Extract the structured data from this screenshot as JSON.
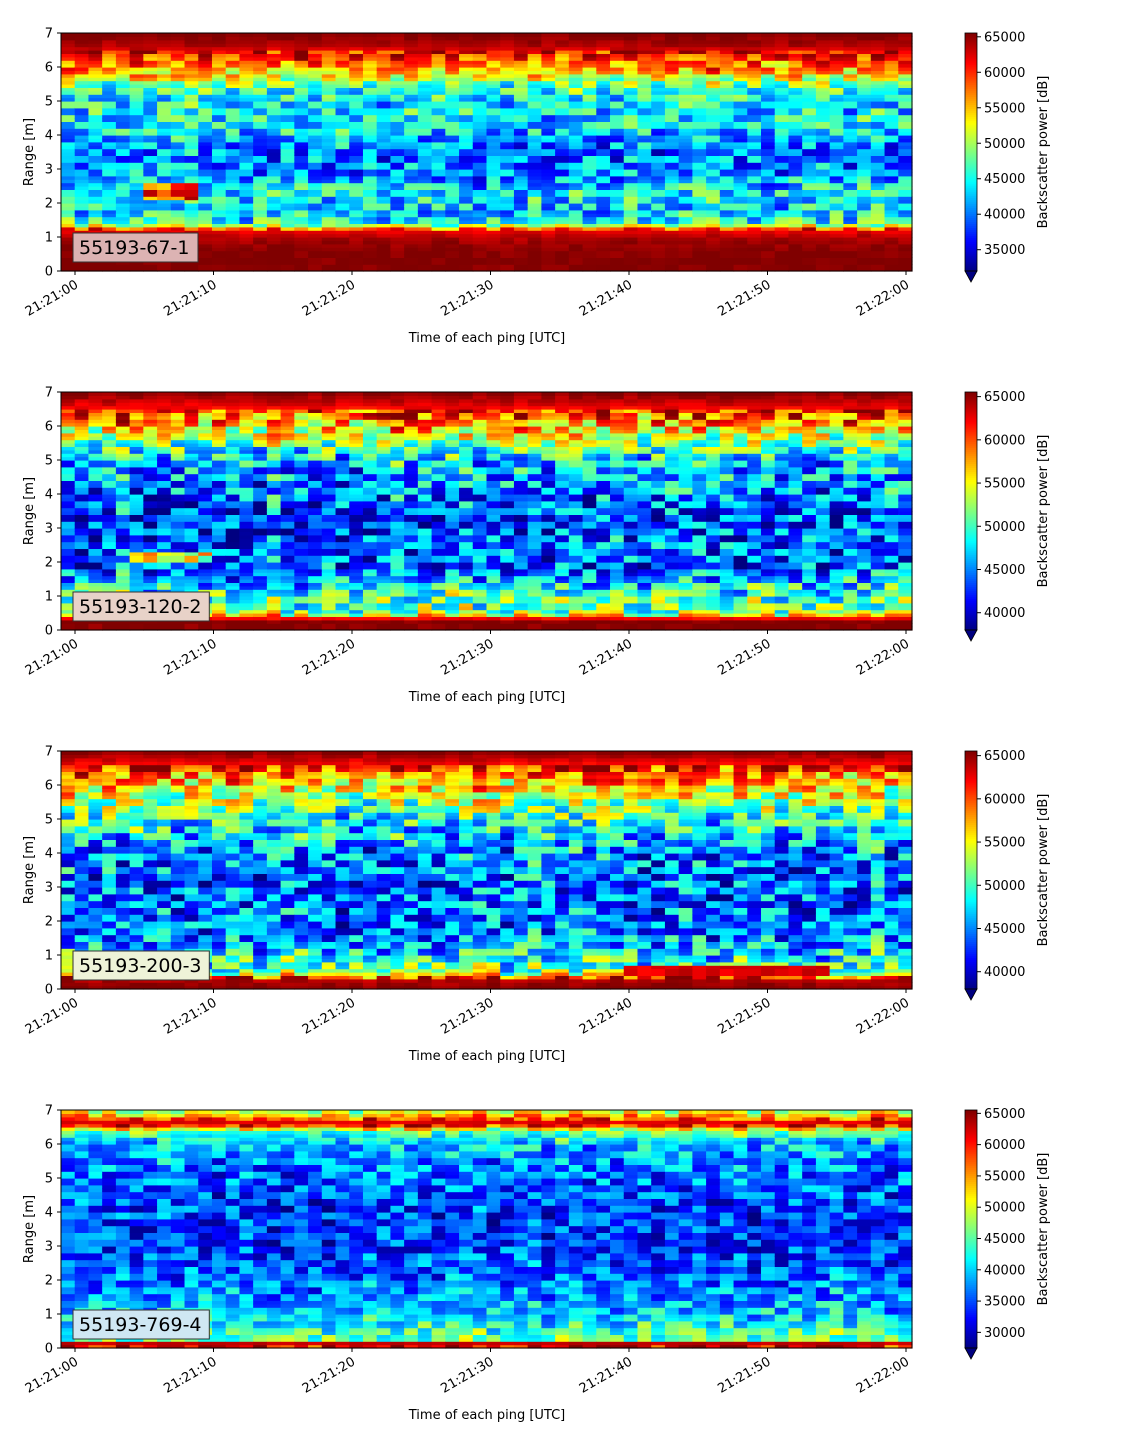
{
  "figure": {
    "colormap": "jet",
    "xlabel": "Time of each ping [UTC]",
    "ylabel": "Range [m]",
    "colorbar_label": "Backscatter power [dB]"
  },
  "chart_data": [
    {
      "type": "heatmap",
      "box_label": "55193-67-1",
      "box_color": "#dcb3b3",
      "xlabel": "Time of each ping [UTC]",
      "ylabel": "Range [m]",
      "x_ticks": [
        "21:21:00",
        "21:21:10",
        "21:21:20",
        "21:21:30",
        "21:21:40",
        "21:21:50",
        "21:22:00"
      ],
      "y_ticks": [
        0,
        1,
        2,
        3,
        4,
        5,
        6,
        7
      ],
      "xlim": [
        "21:21:00",
        "21:22:00"
      ],
      "ylim": [
        0,
        7
      ],
      "colorbar": {
        "label": "Backscatter power [dB]",
        "vmin": 32000,
        "vmax": 65535,
        "ticks": [
          35000,
          40000,
          45000,
          50000,
          55000,
          60000,
          65000
        ],
        "extend": "min"
      },
      "profile": [
        {
          "range": 0.0,
          "value": 65535
        },
        {
          "range": 0.25,
          "value": 65535
        },
        {
          "range": 0.6,
          "value": 65535
        },
        {
          "range": 1.0,
          "value": 64000
        },
        {
          "range": 1.2,
          "value": 62000
        },
        {
          "range": 1.4,
          "value": 46000
        },
        {
          "range": 1.8,
          "value": 43000
        },
        {
          "range": 2.3,
          "value": 45000
        },
        {
          "range": 2.8,
          "value": 41000
        },
        {
          "range": 3.5,
          "value": 40000
        },
        {
          "range": 4.2,
          "value": 44000
        },
        {
          "range": 5.0,
          "value": 44000
        },
        {
          "range": 5.5,
          "value": 48000
        },
        {
          "range": 5.9,
          "value": 56000
        },
        {
          "range": 6.3,
          "value": 60000
        },
        {
          "range": 6.65,
          "value": 64000
        },
        {
          "range": 7.0,
          "value": 65535
        }
      ],
      "features": [
        {
          "t_start": 5,
          "t_end": 9,
          "range_start": 2.15,
          "range_end": 2.55,
          "value": 58000
        }
      ]
    },
    {
      "type": "heatmap",
      "box_label": "55193-120-2",
      "box_color": "#e8d2c8",
      "xlabel": "Time of each ping [UTC]",
      "ylabel": "Range [m]",
      "x_ticks": [
        "21:21:00",
        "21:21:10",
        "21:21:20",
        "21:21:30",
        "21:21:40",
        "21:21:50",
        "21:22:00"
      ],
      "y_ticks": [
        0,
        1,
        2,
        3,
        4,
        5,
        6,
        7
      ],
      "xlim": [
        "21:21:00",
        "21:22:00"
      ],
      "ylim": [
        0,
        7
      ],
      "colorbar": {
        "label": "Backscatter power [dB]",
        "vmin": 38000,
        "vmax": 65535,
        "ticks": [
          40000,
          45000,
          50000,
          55000,
          60000,
          65000
        ],
        "extend": "min"
      },
      "profile": [
        {
          "range": 0.0,
          "value": 65535
        },
        {
          "range": 0.3,
          "value": 65535
        },
        {
          "range": 0.5,
          "value": 52000
        },
        {
          "range": 1.0,
          "value": 50000
        },
        {
          "range": 1.4,
          "value": 47000
        },
        {
          "range": 1.8,
          "value": 44000
        },
        {
          "range": 2.5,
          "value": 44000
        },
        {
          "range": 3.2,
          "value": 43000
        },
        {
          "range": 4.0,
          "value": 45000
        },
        {
          "range": 5.0,
          "value": 47000
        },
        {
          "range": 5.6,
          "value": 53000
        },
        {
          "range": 6.1,
          "value": 58000
        },
        {
          "range": 6.5,
          "value": 62000
        },
        {
          "range": 7.0,
          "value": 65535
        }
      ],
      "features": [
        {
          "t_start": 4,
          "t_end": 10,
          "range_start": 2.0,
          "range_end": 2.3,
          "value": 56000
        }
      ]
    },
    {
      "type": "heatmap",
      "box_label": "55193-200-3",
      "box_color": "#eef3d8",
      "xlabel": "Time of each ping [UTC]",
      "ylabel": "Range [m]",
      "x_ticks": [
        "21:21:00",
        "21:21:10",
        "21:21:20",
        "21:21:30",
        "21:21:40",
        "21:21:50",
        "21:22:00"
      ],
      "y_ticks": [
        0,
        1,
        2,
        3,
        4,
        5,
        6,
        7
      ],
      "xlim": [
        "21:21:00",
        "21:22:00"
      ],
      "ylim": [
        0,
        7
      ],
      "colorbar": {
        "label": "Backscatter power [dB]",
        "vmin": 38000,
        "vmax": 65535,
        "ticks": [
          40000,
          45000,
          50000,
          55000,
          60000,
          65000
        ],
        "extend": "min"
      },
      "profile": [
        {
          "range": 0.0,
          "value": 65535
        },
        {
          "range": 0.3,
          "value": 64000
        },
        {
          "range": 0.5,
          "value": 51000
        },
        {
          "range": 1.0,
          "value": 48000
        },
        {
          "range": 1.5,
          "value": 45000
        },
        {
          "range": 2.0,
          "value": 44000
        },
        {
          "range": 3.0,
          "value": 44000
        },
        {
          "range": 4.0,
          "value": 45000
        },
        {
          "range": 5.0,
          "value": 49000
        },
        {
          "range": 5.6,
          "value": 53000
        },
        {
          "range": 6.1,
          "value": 57000
        },
        {
          "range": 6.6,
          "value": 62000
        },
        {
          "range": 7.0,
          "value": 65535
        }
      ],
      "features": [
        {
          "t_start": 40,
          "t_end": 55,
          "range_start": 0.4,
          "range_end": 0.7,
          "value": 63000
        }
      ]
    },
    {
      "type": "heatmap",
      "box_label": "55193-769-4",
      "box_color": "#cfe7f3",
      "xlabel": "Time of each ping [UTC]",
      "ylabel": "Range [m]",
      "x_ticks": [
        "21:21:00",
        "21:21:10",
        "21:21:20",
        "21:21:30",
        "21:21:40",
        "21:21:50",
        "21:22:00"
      ],
      "y_ticks": [
        0,
        1,
        2,
        3,
        4,
        5,
        6,
        7
      ],
      "xlim": [
        "21:21:00",
        "21:22:00"
      ],
      "ylim": [
        0,
        7
      ],
      "colorbar": {
        "label": "Backscatter power [dB]",
        "vmin": 27500,
        "vmax": 65535,
        "ticks": [
          30000,
          35000,
          40000,
          45000,
          50000,
          55000,
          60000,
          65000
        ],
        "extend": "min"
      },
      "profile": [
        {
          "range": 0.0,
          "value": 60000
        },
        {
          "range": 0.15,
          "value": 63000
        },
        {
          "range": 0.25,
          "value": 46000
        },
        {
          "range": 0.5,
          "value": 44000
        },
        {
          "range": 1.0,
          "value": 40000
        },
        {
          "range": 2.0,
          "value": 36000
        },
        {
          "range": 3.0,
          "value": 34000
        },
        {
          "range": 4.0,
          "value": 34000
        },
        {
          "range": 5.0,
          "value": 36000
        },
        {
          "range": 6.0,
          "value": 39000
        },
        {
          "range": 6.4,
          "value": 46000
        },
        {
          "range": 6.6,
          "value": 64000
        },
        {
          "range": 6.8,
          "value": 56000
        },
        {
          "range": 7.0,
          "value": 48000
        }
      ],
      "features": []
    }
  ]
}
